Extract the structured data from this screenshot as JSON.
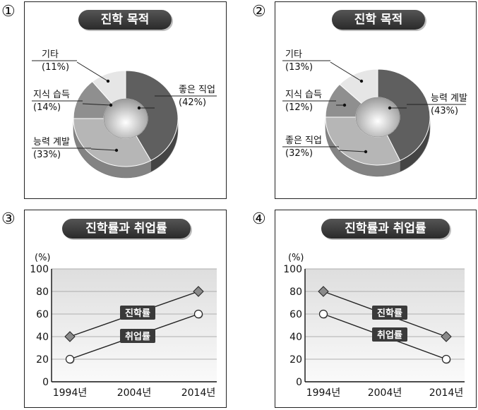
{
  "panels": [
    {
      "marker": "①",
      "chart_data": {
        "type": "pie",
        "title": "진학 목적",
        "slices": [
          {
            "label": "좋은 직업",
            "value": 42,
            "pct": "(42%)",
            "color": "#5f5f5f"
          },
          {
            "label": "능력 계발",
            "value": 33,
            "pct": "(33%)",
            "color": "#b6b6b6"
          },
          {
            "label": "지식 습득",
            "value": 14,
            "pct": "(14%)",
            "color": "#8f8f8f"
          },
          {
            "label": "기타",
            "value": 11,
            "pct": "(11%)",
            "color": "#e6e6e6"
          }
        ]
      }
    },
    {
      "marker": "②",
      "chart_data": {
        "type": "pie",
        "title": "진학 목적",
        "slices": [
          {
            "label": "능력 계발",
            "value": 43,
            "pct": "(43%)",
            "color": "#5f5f5f"
          },
          {
            "label": "좋은 직업",
            "value": 32,
            "pct": "(32%)",
            "color": "#b6b6b6"
          },
          {
            "label": "지식 습득",
            "value": 12,
            "pct": "(12%)",
            "color": "#8f8f8f"
          },
          {
            "label": "기타",
            "value": 13,
            "pct": "(13%)",
            "color": "#e6e6e6"
          }
        ]
      }
    },
    {
      "marker": "③",
      "chart_data": {
        "type": "line",
        "title": "진학률과 취업률",
        "ylabel": "(%)",
        "ylim": [
          0,
          100
        ],
        "yticks": [
          0,
          20,
          40,
          60,
          80,
          100
        ],
        "categories": [
          "1994년",
          "2004년",
          "2014년"
        ],
        "series": [
          {
            "name": "진학률",
            "marker": "diamond",
            "points": [
              [
                0,
                40
              ],
              [
                2,
                80
              ]
            ]
          },
          {
            "name": "취업률",
            "marker": "circle",
            "points": [
              [
                0,
                20
              ],
              [
                2,
                60
              ]
            ]
          }
        ]
      }
    },
    {
      "marker": "④",
      "chart_data": {
        "type": "line",
        "title": "진학률과 취업률",
        "ylabel": "(%)",
        "ylim": [
          0,
          100
        ],
        "yticks": [
          0,
          20,
          40,
          60,
          80,
          100
        ],
        "categories": [
          "1994년",
          "2004년",
          "2014년"
        ],
        "series": [
          {
            "name": "진학률",
            "marker": "diamond",
            "points": [
              [
                0,
                80
              ],
              [
                2,
                40
              ]
            ]
          },
          {
            "name": "취업률",
            "marker": "circle",
            "points": [
              [
                0,
                60
              ],
              [
                2,
                20
              ]
            ]
          }
        ]
      }
    }
  ]
}
